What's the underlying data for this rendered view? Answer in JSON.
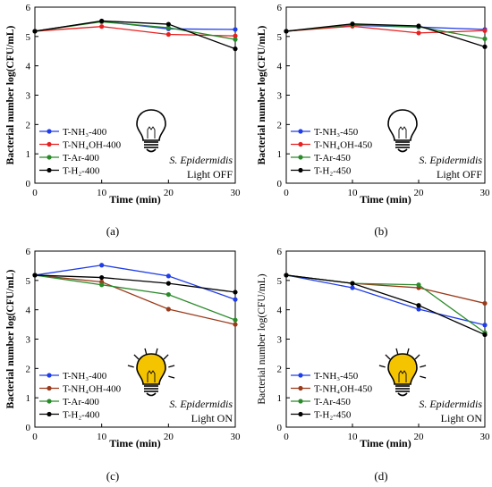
{
  "chart_data": [
    {
      "type": "line",
      "panel_label": "(a)",
      "xlabel": "Time (min)",
      "ylabel": "Bacterial number log(CFU/mL)",
      "x": [
        0,
        10,
        20,
        30
      ],
      "xlim": [
        0,
        30
      ],
      "ylim": [
        0,
        6
      ],
      "xticks": [
        0,
        10,
        20,
        30
      ],
      "yticks": [
        0,
        1,
        2,
        3,
        4,
        5,
        6
      ],
      "grid": false,
      "legend_position": "bottom-left",
      "annotation": {
        "organism": "S. Epidermidis",
        "light": "Light OFF",
        "bulb": "off"
      },
      "series": [
        {
          "name": "T-NH₃-400",
          "color": "#1f3de8",
          "values": [
            5.18,
            5.52,
            5.26,
            5.24
          ]
        },
        {
          "name": "T-NH₄OH-400",
          "color": "#e82020",
          "values": [
            5.18,
            5.34,
            5.07,
            5.02
          ]
        },
        {
          "name": "T-Ar-400",
          "color": "#2a8a2a",
          "values": [
            5.18,
            5.5,
            5.3,
            4.9
          ]
        },
        {
          "name": "T-H₂-400",
          "color": "#000000",
          "values": [
            5.18,
            5.53,
            5.42,
            4.58
          ]
        }
      ]
    },
    {
      "type": "line",
      "panel_label": "(b)",
      "xlabel": "Time (min)",
      "ylabel": "Bacterial number log(CFU/mL)",
      "x": [
        0,
        10,
        20,
        30
      ],
      "xlim": [
        0,
        30
      ],
      "ylim": [
        0,
        6
      ],
      "xticks": [
        0,
        10,
        20,
        30
      ],
      "yticks": [
        0,
        1,
        2,
        3,
        4,
        5,
        6
      ],
      "grid": false,
      "legend_position": "bottom-left",
      "annotation": {
        "organism": "S. Epidermidis",
        "light": "Light OFF",
        "bulb": "off"
      },
      "series": [
        {
          "name": "T-NH₃-450",
          "color": "#1f3de8",
          "values": [
            5.18,
            5.38,
            5.32,
            5.24
          ]
        },
        {
          "name": "T-NH₄OH-450",
          "color": "#e82020",
          "values": [
            5.18,
            5.35,
            5.12,
            5.2
          ]
        },
        {
          "name": "T-Ar-450",
          "color": "#2a8a2a",
          "values": [
            5.18,
            5.4,
            5.33,
            4.92
          ]
        },
        {
          "name": "T-H₂-450",
          "color": "#000000",
          "values": [
            5.18,
            5.43,
            5.36,
            4.65
          ]
        }
      ]
    },
    {
      "type": "line",
      "panel_label": "(c)",
      "xlabel": "Time (min)",
      "ylabel": "Bacterial number log(CFU/mL)",
      "x": [
        0,
        10,
        20,
        30
      ],
      "xlim": [
        0,
        30
      ],
      "ylim": [
        0,
        6
      ],
      "xticks": [
        0,
        10,
        20,
        30
      ],
      "yticks": [
        0,
        1,
        2,
        3,
        4,
        5,
        6
      ],
      "grid": false,
      "legend_position": "bottom-left",
      "annotation": {
        "organism": "S. Epidermidis",
        "light": "Light ON",
        "bulb": "on"
      },
      "series": [
        {
          "name": "T-NH₃-400",
          "color": "#1f3de8",
          "values": [
            5.18,
            5.52,
            5.15,
            4.35
          ]
        },
        {
          "name": "T-NH₄OH-400",
          "color": "#9a3a1a",
          "values": [
            5.18,
            4.95,
            4.02,
            3.5
          ]
        },
        {
          "name": "T-Ar-400",
          "color": "#2a8a2a",
          "values": [
            5.18,
            4.85,
            4.52,
            3.65
          ]
        },
        {
          "name": "T-H₂-400",
          "color": "#000000",
          "values": [
            5.18,
            5.1,
            4.9,
            4.6
          ]
        }
      ]
    },
    {
      "type": "line",
      "panel_label": "(d)",
      "xlabel": "Time (min)",
      "ylabel": "Bacterial number log(CFU/mL)",
      "x": [
        0,
        10,
        20,
        30
      ],
      "xlim": [
        0,
        30
      ],
      "ylim": [
        0,
        6
      ],
      "xticks": [
        0,
        10,
        20,
        30
      ],
      "yticks": [
        0,
        1,
        2,
        3,
        4,
        5,
        6
      ],
      "grid": false,
      "legend_position": "bottom-left",
      "annotation": {
        "organism": "S. Epidermidis",
        "light": "Light ON",
        "bulb": "on"
      },
      "series": [
        {
          "name": "T-NH₃-450",
          "color": "#1f3de8",
          "values": [
            5.18,
            4.75,
            4.02,
            3.48
          ]
        },
        {
          "name": "T-NH₄OH-450",
          "color": "#9a3a1a",
          "values": [
            5.18,
            4.9,
            4.75,
            4.22
          ]
        },
        {
          "name": "T-Ar-450",
          "color": "#2a8a2a",
          "values": [
            5.18,
            4.9,
            4.85,
            3.22
          ]
        },
        {
          "name": "T-H₂-450",
          "color": "#000000",
          "values": [
            5.18,
            4.9,
            4.15,
            3.15
          ]
        }
      ]
    }
  ]
}
